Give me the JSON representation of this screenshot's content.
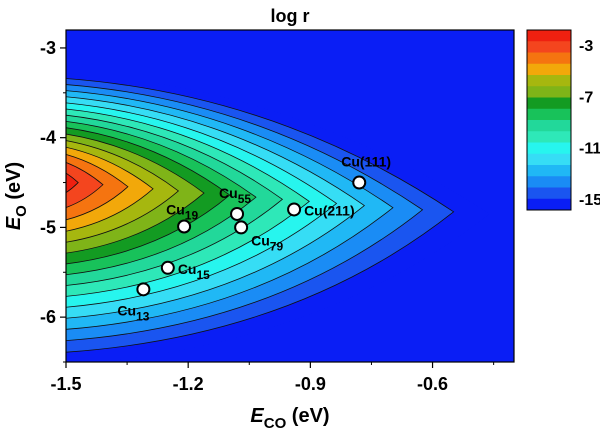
{
  "chart_data": {
    "type": "contour",
    "title": "log r",
    "xlabel": {
      "main": "E",
      "sub": "CO",
      "unit": " (eV)"
    },
    "ylabel": {
      "main": "E",
      "sub": "O",
      "unit": " (eV)"
    },
    "xlim": [
      -1.5,
      -0.4
    ],
    "ylim": [
      -6.5,
      -2.8
    ],
    "xticks": [
      -1.5,
      -1.2,
      -0.9,
      -0.6
    ],
    "xtick_labels": [
      "-1.5",
      "-1.2",
      "-0.9",
      "-0.6"
    ],
    "yticks": [
      -3,
      -4,
      -5,
      -6
    ],
    "ytick_labels": [
      "-3",
      "-4",
      "-5",
      "-6"
    ],
    "colorbar": {
      "levels": [
        -16,
        -15,
        -14,
        -13,
        -12,
        -11,
        -10,
        -9,
        -8,
        -7,
        -6,
        -5,
        -4,
        -3,
        -2
      ],
      "colors": [
        "#0a1ef5",
        "#1a55f0",
        "#1a8cf5",
        "#20b8f5",
        "#36ddf5",
        "#27f5ee",
        "#2ee8b8",
        "#22d89a",
        "#18c25a",
        "#139b22",
        "#7fb418",
        "#a6b70f",
        "#f2a80a",
        "#f57410",
        "#f4451e",
        "#ef2010"
      ],
      "tick_values": [
        -3,
        -7,
        -11,
        -15
      ],
      "tick_labels": [
        "-3",
        "-7",
        "-11",
        "-15"
      ]
    },
    "background_color": "#0a1ef5",
    "points": [
      {
        "name": "Cu(111)",
        "base": "Cu(111)",
        "sub": "",
        "x": -0.78,
        "y": -4.5,
        "label_pos": "above"
      },
      {
        "name": "Cu55",
        "base": "Cu",
        "sub": "55",
        "x": -1.08,
        "y": -4.85,
        "label_pos": "above"
      },
      {
        "name": "Cu(211)",
        "base": "Cu(211)",
        "sub": "",
        "x": -0.94,
        "y": -4.8,
        "label_pos": "right"
      },
      {
        "name": "Cu19",
        "base": "Cu",
        "sub": "19",
        "x": -1.21,
        "y": -4.99,
        "label_pos": "above-left"
      },
      {
        "name": "Cu79",
        "base": "Cu",
        "sub": "79",
        "x": -1.07,
        "y": -5.0,
        "label_pos": "below-right"
      },
      {
        "name": "Cu15",
        "base": "Cu",
        "sub": "15",
        "x": -1.25,
        "y": -5.45,
        "label_pos": "right"
      },
      {
        "name": "Cu13",
        "base": "Cu",
        "sub": "13",
        "x": -1.31,
        "y": -5.69,
        "label_pos": "below-left"
      }
    ]
  }
}
